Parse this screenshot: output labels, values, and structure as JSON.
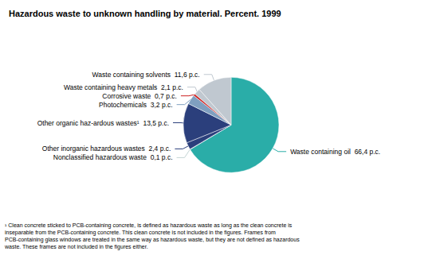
{
  "chart_data": {
    "type": "pie",
    "title": "Hazardous waste to unknown handling by material. Percent. 1999",
    "categories": [
      "Waste containing oil  66,4 p.c.",
      "Nonclassified hazardous waste  0,1 p.c.",
      "Other inorganic hazardous wastes  2,4 p.c.",
      "Other organic haz-ardous wastes¹  13,5 p.c.",
      "Photochemicals  3,2 p.c.",
      "Corrosive waste  0,7 p.c.",
      "Waste containing heavy metals  2,1 p.c.",
      "Waste containing solvents  11,6 p.c."
    ],
    "values": [
      66.4,
      0.1,
      2.4,
      13.5,
      3.2,
      0.7,
      2.1,
      11.6
    ],
    "colors": [
      "#2aada8",
      "#c5d5d5",
      "#2b3f7c",
      "#2b3f7c",
      "#7f9fc0",
      "#cc2222",
      "#c0c8d0",
      "#c0c8d0"
    ],
    "annotations": [
      "¹ Clean concrete sticked to PCB-containing concrete, is defined as hazardous waste as long as the clean concrete is\ninseparable from the PCB-containing concrete. This clean concrete is not included in the figures. Frames from\nPCB-containing glass windows are treated in the same way as hazardous waste, but they are not defined as hazardous\nwaste. These frames are not included in the figures either."
    ],
    "legend": false
  }
}
